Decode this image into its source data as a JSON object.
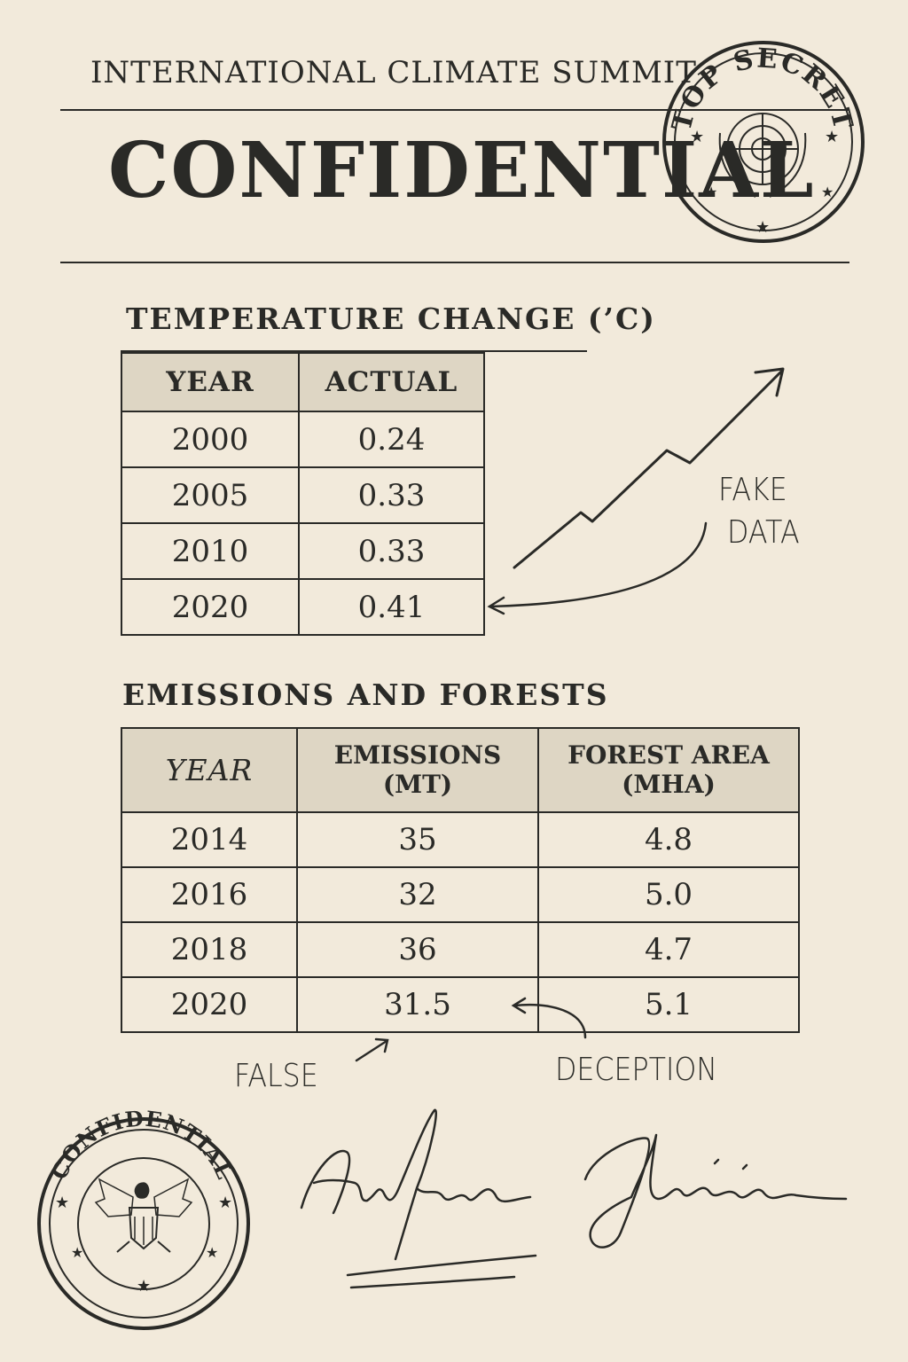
{
  "header": {
    "organization": "INTERNATIONAL CLIMATE SUMMIT",
    "classification": "CONFIDENTIAL",
    "top_stamp_text": "TOP SECRET"
  },
  "temperature_section": {
    "title": "TEMPERATURE CHANGE (’C)",
    "columns": [
      "YEAR",
      "ACTUAL"
    ],
    "rows": [
      {
        "year": "2000",
        "actual": "0.24"
      },
      {
        "year": "2005",
        "actual": "0.33"
      },
      {
        "year": "2010",
        "actual": "0.33"
      },
      {
        "year": "2020",
        "actual": "0.41"
      }
    ]
  },
  "emissions_section": {
    "title": "EMISSIONS AND FORESTS",
    "columns": {
      "year": "YEAR",
      "emissions_line1": "EMISSIONS",
      "emissions_line2": "(MT)",
      "forest_line1": "FOREST AREA",
      "forest_line2": "(MHA)"
    },
    "rows": [
      {
        "year": "2014",
        "emissions": "35",
        "forest": "4.8"
      },
      {
        "year": "2016",
        "emissions": "32",
        "forest": "5.0"
      },
      {
        "year": "2018",
        "emissions": "36",
        "forest": "4.7"
      },
      {
        "year": "2020",
        "emissions": "31.5",
        "forest": "5.1"
      }
    ]
  },
  "annotations": {
    "fake_line1": "FAKE",
    "fake_line2": "DATA",
    "false_label": "FALSE",
    "deception_label": "DECEPTION"
  },
  "bottom_stamp_text": "CONFIDENTIAL",
  "icons": [
    "globe-emblem-icon",
    "eagle-emblem-icon",
    "star-icon",
    "arrow-icon"
  ],
  "colors": {
    "paper": "#f2eadb",
    "ink": "#2a2a27",
    "header_fill": "#ded6c4"
  }
}
